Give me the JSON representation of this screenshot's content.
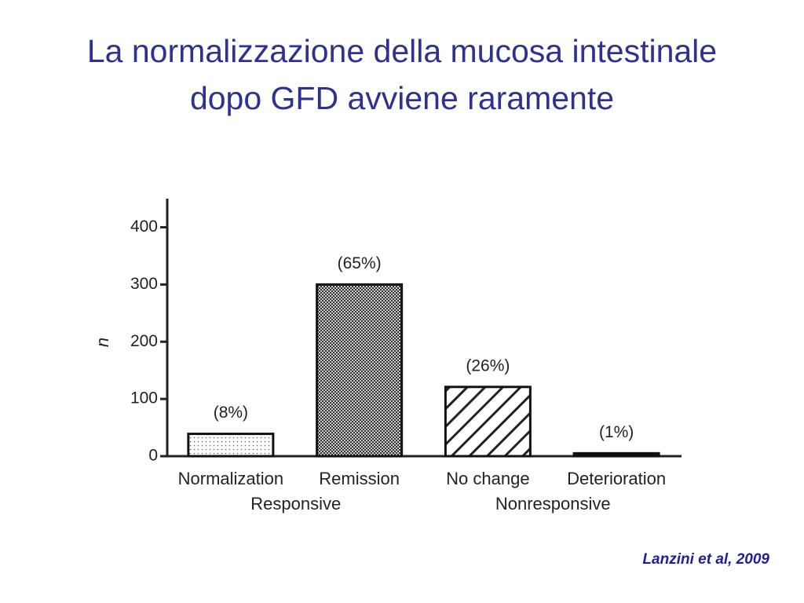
{
  "chart_data": {
    "type": "bar",
    "title_lines": [
      "La normalizzazione della mucosa intestinale",
      "dopo GFD avviene raramente"
    ],
    "y_label": "n",
    "categories": [
      "Normalization",
      "Remission",
      "No change",
      "Deterioration"
    ],
    "values": [
      39,
      300,
      121,
      5
    ],
    "annotations": [
      "(8%)",
      "(65%)",
      "(26%)",
      "(1%)"
    ],
    "groups": [
      {
        "name": "Responsive",
        "size": 2
      },
      {
        "name": "Nonresponsive",
        "size": 2
      }
    ],
    "ylim": [
      0,
      450
    ],
    "yticks": [
      0,
      100,
      200,
      300,
      400
    ],
    "source": "Lanzini et al, 2009"
  }
}
